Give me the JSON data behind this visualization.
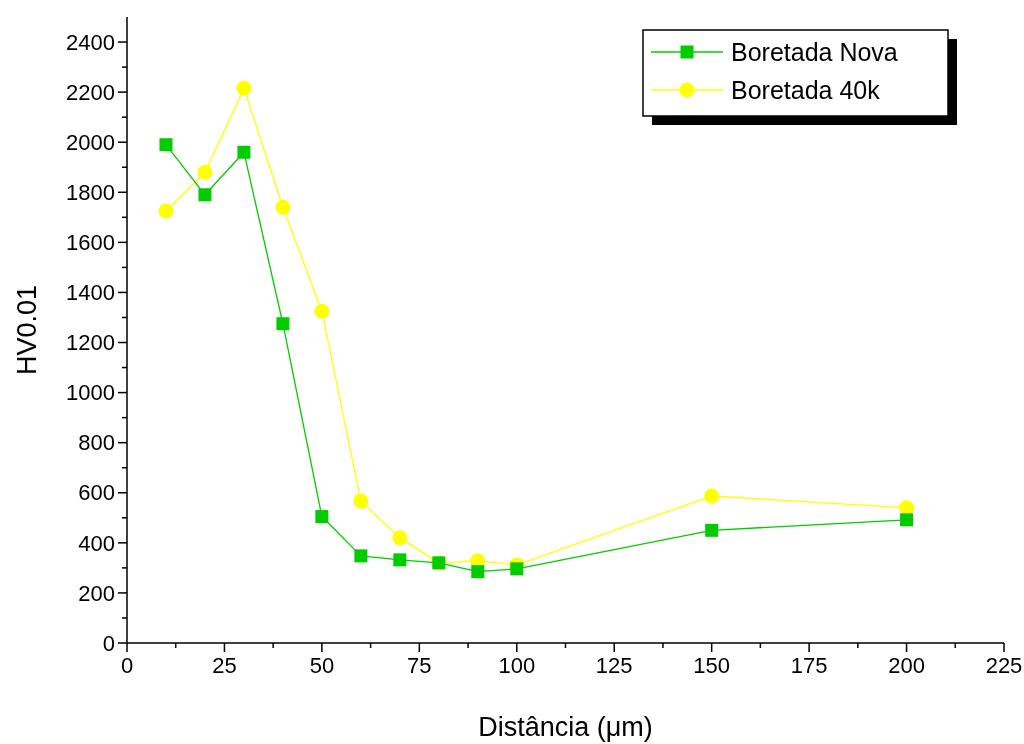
{
  "chart_data": {
    "type": "line",
    "xlabel": "Distância (μm)",
    "ylabel": "HV0.01",
    "x": [
      10,
      20,
      30,
      40,
      50,
      60,
      70,
      80,
      90,
      100,
      150,
      200
    ],
    "series": [
      {
        "name": "Boretada Nova",
        "color": "#00cc00",
        "marker": "square",
        "values": [
          1990,
          1790,
          1960,
          1275,
          505,
          348,
          332,
          320,
          285,
          296,
          450,
          492
        ]
      },
      {
        "name": "Boretada 40k",
        "color": "#ffff00",
        "marker": "circle",
        "values": [
          1725,
          1880,
          2215,
          1740,
          1325,
          567,
          420,
          320,
          328,
          312,
          587,
          540
        ]
      }
    ],
    "xlim": [
      0,
      225
    ],
    "ylim": [
      0,
      2500
    ],
    "xticks": [
      0,
      {
        "value": 12.5,
        "label": null
      },
      25,
      {
        "value": 37.5,
        "label": null
      },
      50,
      {
        "value": 62.5,
        "label": null
      },
      75,
      {
        "value": 87.5,
        "label": null
      },
      100,
      {
        "value": 112.5,
        "label": null
      },
      125,
      {
        "value": 137.5,
        "label": null
      },
      150,
      {
        "value": 162.5,
        "label": null
      },
      175,
      {
        "value": 187.5,
        "label": null
      },
      200,
      {
        "value": 212.5,
        "label": null
      },
      225
    ],
    "yticks": [
      0,
      {
        "value": 100,
        "label": null
      },
      200,
      {
        "value": 300,
        "label": null
      },
      400,
      {
        "value": 500,
        "label": null
      },
      600,
      {
        "value": 700,
        "label": null
      },
      800,
      {
        "value": 900,
        "label": null
      },
      1000,
      {
        "value": 1100,
        "label": null
      },
      1200,
      {
        "value": 1300,
        "label": null
      },
      1400,
      {
        "value": 1500,
        "label": null
      },
      1600,
      {
        "value": 1700,
        "label": null
      },
      1800,
      {
        "value": 1900,
        "label": null
      },
      2000,
      {
        "value": 2100,
        "label": null
      },
      2200,
      {
        "value": 2300,
        "label": null
      },
      2400
    ],
    "grid": false,
    "legend": "top right"
  }
}
